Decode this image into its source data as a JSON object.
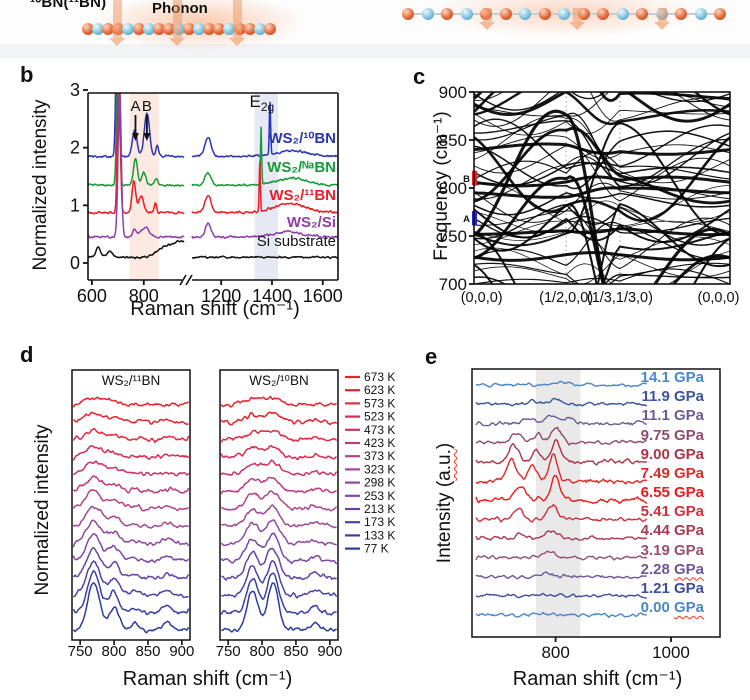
{
  "figure": {
    "panel_labels": {
      "b": "b",
      "c": "c",
      "d": "d",
      "e": "e"
    },
    "schematic": {
      "label_left": "¹⁰BN(¹¹BN)",
      "phonon_label": "Phonon",
      "boron_color": "#e2693c",
      "nitrogen_color": "#7ec3dd",
      "arrow_color": "rgba(238,148,95,0.55)"
    }
  },
  "chart_data": [
    {
      "id": "b",
      "type": "line",
      "xlabel": "Raman shift (cm⁻¹)",
      "ylabel": "Normalized intensity",
      "y_ticks": [
        0,
        1,
        2,
        3
      ],
      "x_ticks_left": [
        600,
        800
      ],
      "x_ticks_right": [
        1200,
        1400,
        1600
      ],
      "xlim_left": [
        585,
        955
      ],
      "xlim_right": [
        1085,
        1660
      ],
      "ylim": [
        0,
        3.1
      ],
      "axis_break": true,
      "bands": [
        {
          "x0": 745,
          "x1": 858,
          "color": "#fbe9e2"
        },
        {
          "x0": 1332,
          "x1": 1424,
          "color": "#e6e8f4"
        }
      ],
      "peak_arrows": [
        {
          "label": "A",
          "x": 768
        },
        {
          "label": "B",
          "x": 812
        }
      ],
      "e2g_label": {
        "main": "E",
        "sub": "2g",
        "x": 1360
      },
      "series": [
        {
          "name": "WS₂/¹⁰BN",
          "color": "#2a35b5",
          "offset": 1.85,
          "seed": 101,
          "noise": 0.025,
          "peaks": [
            [
              698,
              3.0,
              5
            ],
            [
              765,
              0.45,
              9
            ],
            [
              812,
              0.75,
              10
            ],
            [
              852,
              0.2,
              5
            ],
            [
              1148,
              0.33,
              12
            ],
            [
              1392,
              0.92,
              2.5
            ],
            [
              1480,
              0.1,
              60
            ]
          ]
        },
        {
          "name": "WS₂/ᴺᵃBN",
          "color": "#169a38",
          "offset": 1.35,
          "seed": 102,
          "noise": 0.025,
          "peaks": [
            [
              701,
              3.0,
              5
            ],
            [
              768,
              0.45,
              8
            ],
            [
              800,
              0.22,
              8
            ],
            [
              848,
              0.13,
              5
            ],
            [
              1148,
              0.22,
              12
            ],
            [
              1357,
              1.0,
              2.2
            ],
            [
              1480,
              0.12,
              60
            ]
          ]
        },
        {
          "name": "WS₂/¹¹BN",
          "color": "#ee1c24",
          "offset": 0.875,
          "seed": 103,
          "noise": 0.027,
          "peaks": [
            [
              704,
              3.0,
              5
            ],
            [
              762,
              0.55,
              7
            ],
            [
              790,
              0.28,
              9
            ],
            [
              845,
              0.17,
              4.5
            ],
            [
              1148,
              0.3,
              12
            ],
            [
              1352,
              0.88,
              2.2
            ],
            [
              1470,
              0.16,
              60
            ]
          ]
        },
        {
          "name": "WS₂/Si",
          "color": "#8f3fa8",
          "offset": 0.45,
          "seed": 104,
          "noise": 0.028,
          "peaks": [
            [
              707,
              2.6,
              6
            ],
            [
              765,
              0.14,
              7
            ],
            [
              805,
              0.17,
              16
            ],
            [
              1148,
              0.24,
              11
            ],
            [
              1460,
              0.09,
              60
            ]
          ]
        },
        {
          "name": "Si substrate",
          "color": "#111111",
          "offset": 0.1,
          "seed": 105,
          "noise": 0.024,
          "peaks": [
            [
              625,
              0.16,
              9
            ],
            [
              668,
              0.1,
              11
            ],
            [
              870,
              0.1,
              25
            ],
            [
              945,
              0.28,
              45
            ]
          ]
        }
      ]
    },
    {
      "id": "c",
      "type": "dispersion",
      "ylabel": "Frequency (cm⁻¹)",
      "ylim": [
        700,
        900
      ],
      "y_ticks": [
        700,
        750,
        800,
        850,
        900
      ],
      "k_labels": [
        "(0,0,0)",
        "(1/2,0,0)",
        "(1/3,1/3,0)",
        "(0,0,0)"
      ],
      "k_pos": [
        0,
        0.36,
        0.57,
        1
      ],
      "line_color": "#000000",
      "seed": 11,
      "n_minor": 30,
      "n_major": 13,
      "flat_centers": [
        840,
        806,
        795,
        752,
        728
      ],
      "markers": [
        {
          "label": "B",
          "color": "#ee1c24",
          "f0": 803,
          "f1": 818
        },
        {
          "label": "A",
          "color": "#2222dd",
          "f0": 761,
          "f1": 776
        }
      ]
    },
    {
      "id": "d",
      "type": "line-stack",
      "xlabel": "Raman shift (cm⁻¹)",
      "ylabel": "Normalized intensity",
      "x_ticks": [
        750,
        800,
        850,
        900
      ],
      "xlim": [
        738,
        912
      ],
      "panels": [
        {
          "title": "WS₂/¹¹BN",
          "peaks": [
            [
              770,
              1.0,
              9
            ],
            [
              800,
              0.5,
              7
            ],
            [
              830,
              0.12,
              6
            ],
            [
              878,
              0.14,
              6
            ]
          ]
        },
        {
          "title": "WS₂/¹⁰BN",
          "peaks": [
            [
              786,
              0.85,
              8
            ],
            [
              816,
              1.0,
              8
            ],
            [
              878,
              0.16,
              6
            ]
          ]
        }
      ],
      "temps": [
        {
          "label": "673 K",
          "color": "#e8232a",
          "amp": 7
        },
        {
          "label": "623 K",
          "color": "#e8232a",
          "amp": 8
        },
        {
          "label": "573 K",
          "color": "#e32b3e",
          "amp": 9
        },
        {
          "label": "523 K",
          "color": "#d92a50",
          "amp": 10
        },
        {
          "label": "473 K",
          "color": "#cc3366",
          "amp": 12
        },
        {
          "label": "423 K",
          "color": "#c03a7a",
          "amp": 14
        },
        {
          "label": "373 K",
          "color": "#b2438c",
          "amp": 17
        },
        {
          "label": "323 K",
          "color": "#a04898",
          "amp": 20
        },
        {
          "label": "298 K",
          "color": "#8f4a9e",
          "amp": 23
        },
        {
          "label": "253 K",
          "color": "#7a48a5",
          "amp": 26
        },
        {
          "label": "213 K",
          "color": "#6244a8",
          "amp": 30
        },
        {
          "label": "173 K",
          "color": "#4c42a8",
          "amp": 34
        },
        {
          "label": "133 K",
          "color": "#3a3fa5",
          "amp": 40
        },
        {
          "label": "77 K",
          "color": "#2b3c9e",
          "amp": 48
        }
      ]
    },
    {
      "id": "e",
      "type": "line-stack",
      "xlabel": "Raman shift (cm⁻¹)",
      "ylabel_main": "Intensity (",
      "ylabel_wavy": "a.u.",
      "ylabel_close": ")",
      "x_ticks": [
        800,
        1000
      ],
      "xlim": [
        655,
        1085
      ],
      "band": {
        "x0": 766,
        "x1": 843,
        "color": "#e9e9ea"
      },
      "series": [
        {
          "label": "14.1 GPa",
          "color": "#4a86c8",
          "amp": 4,
          "wavy": false,
          "seed": 201,
          "peaks": [
            [
              810,
              0.5,
              16
            ]
          ]
        },
        {
          "label": "11.9 GPa",
          "color": "#3b549c",
          "amp": 7,
          "wavy": false,
          "seed": 202,
          "peaks": [
            [
              760,
              0.5,
              9
            ],
            [
              800,
              0.8,
              12
            ]
          ]
        },
        {
          "label": "11.1 GPa",
          "color": "#6b5b96",
          "amp": 11,
          "wavy": false,
          "seed": 203,
          "peaks": [
            [
              750,
              0.6,
              9
            ],
            [
              790,
              0.8,
              11
            ],
            [
              822,
              0.5,
              7
            ]
          ]
        },
        {
          "label": "9.75 GPa",
          "color": "#8f4a6e",
          "amp": 15,
          "wavy": false,
          "seed": 204,
          "peaks": [
            [
              733,
              0.7,
              9
            ],
            [
              770,
              0.55,
              7
            ],
            [
              801,
              1.0,
              8
            ]
          ]
        },
        {
          "label": "9.00 GPa",
          "color": "#ad3346",
          "amp": 21,
          "wavy": false,
          "seed": 205,
          "peaks": [
            [
              728,
              0.8,
              8
            ],
            [
              765,
              0.6,
              7
            ],
            [
              800,
              1.0,
              7
            ]
          ]
        },
        {
          "label": "7.49 GPa",
          "color": "#e02828",
          "amp": 25,
          "wavy": false,
          "seed": 206,
          "peaks": [
            [
              724,
              0.9,
              8
            ],
            [
              760,
              0.7,
              7
            ],
            [
              796,
              1.0,
              7
            ]
          ]
        },
        {
          "label": "6.55 GPa",
          "color": "#ee1a1a",
          "amp": 26,
          "wavy": false,
          "seed": 207,
          "peaks": [
            [
              740,
              0.55,
              9
            ],
            [
              800,
              1.0,
              7
            ]
          ]
        },
        {
          "label": "5.41 GPa",
          "color": "#d32f3a",
          "amp": 18,
          "wavy": false,
          "seed": 208,
          "peaks": [
            [
              735,
              0.6,
              9
            ],
            [
              795,
              0.85,
              8
            ]
          ]
        },
        {
          "label": "4.44 GPa",
          "color": "#a83a52",
          "amp": 11,
          "wavy": false,
          "seed": 209,
          "peaks": [
            [
              742,
              0.45,
              8
            ],
            [
              792,
              0.8,
              11
            ]
          ]
        },
        {
          "label": "3.19 GPa",
          "color": "#96506e",
          "amp": 9,
          "wavy": false,
          "seed": 210,
          "peaks": [
            [
              786,
              0.7,
              11
            ]
          ]
        },
        {
          "label": "2.28 GPa",
          "color": "#6b5798",
          "amp": 6,
          "wavy": true,
          "seed": 211,
          "peaks": [
            [
              780,
              0.5,
              12
            ]
          ]
        },
        {
          "label": "1.21 GPa",
          "color": "#3f4f97",
          "amp": 5,
          "wavy": false,
          "seed": 212,
          "peaks": [
            [
              775,
              0.3,
              11
            ]
          ]
        },
        {
          "label": "0.00 GPa",
          "color": "#4a86c8",
          "amp": 5,
          "wavy": true,
          "seed": 213,
          "peaks": [
            [
              790,
              0.3,
              14
            ]
          ]
        }
      ]
    }
  ]
}
